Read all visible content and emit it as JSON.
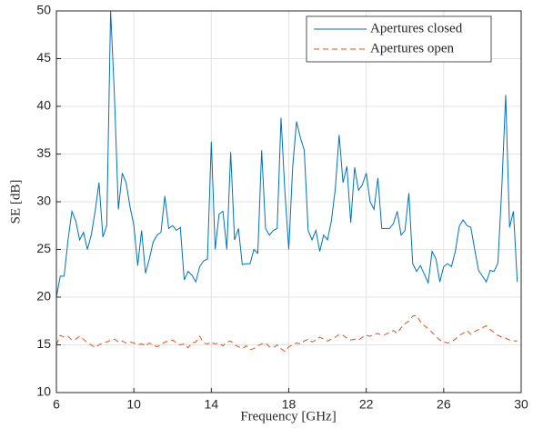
{
  "chart_data": {
    "type": "line",
    "xlabel": "Frequency [GHz]",
    "ylabel": "SE [dB]",
    "x": [
      6.0,
      6.2,
      6.4,
      6.6,
      6.8,
      7.0,
      7.2,
      7.4,
      7.6,
      7.8,
      8.0,
      8.2,
      8.4,
      8.6,
      8.8,
      9.0,
      9.2,
      9.4,
      9.6,
      9.8,
      10.0,
      10.2,
      10.4,
      10.6,
      10.8,
      11.0,
      11.2,
      11.4,
      11.6,
      11.8,
      12.0,
      12.2,
      12.4,
      12.6,
      12.8,
      13.0,
      13.2,
      13.4,
      13.6,
      13.8,
      14.0,
      14.2,
      14.4,
      14.6,
      14.8,
      15.0,
      15.2,
      15.4,
      15.6,
      15.8,
      16.0,
      16.2,
      16.4,
      16.6,
      16.8,
      17.0,
      17.2,
      17.4,
      17.6,
      17.8,
      18.0,
      18.2,
      18.4,
      18.6,
      18.8,
      19.0,
      19.2,
      19.4,
      19.6,
      19.8,
      20.0,
      20.2,
      20.4,
      20.6,
      20.8,
      21.0,
      21.2,
      21.4,
      21.6,
      21.8,
      22.0,
      22.2,
      22.4,
      22.6,
      22.8,
      23.0,
      23.2,
      23.4,
      23.6,
      23.8,
      24.0,
      24.2,
      24.4,
      24.6,
      24.8,
      25.0,
      25.2,
      25.4,
      25.6,
      25.8,
      26.0,
      26.2,
      26.4,
      26.6,
      26.8,
      27.0,
      27.2,
      27.4,
      27.6,
      27.8,
      28.0,
      28.2,
      28.4,
      28.6,
      28.8,
      29.0,
      29.2,
      29.4,
      29.6,
      29.8
    ],
    "series": [
      {
        "name": "Apertures closed",
        "color": "#0072bd",
        "dash": false,
        "values": [
          20,
          22.2,
          22.2,
          26,
          29,
          28,
          26,
          26.8,
          25,
          26.5,
          29,
          32,
          26.3,
          27.5,
          50,
          41,
          29.2,
          33,
          32,
          29.5,
          27.5,
          23.3,
          27,
          22.5,
          24,
          25.8,
          26.5,
          26.8,
          30.6,
          27.2,
          27.5,
          27,
          27.3,
          21.8,
          22.7,
          22.3,
          21.6,
          23.2,
          23.8,
          24,
          36.3,
          25,
          28.7,
          29,
          25,
          35.2,
          26,
          27.2,
          23.4,
          23.5,
          23.5,
          25,
          24.6,
          35.4,
          27.2,
          26.5,
          27,
          27.2,
          38.8,
          31,
          25,
          33.6,
          38.4,
          36.7,
          35.4,
          27,
          26,
          27,
          24.8,
          26.5,
          26,
          28,
          31.3,
          37,
          32,
          33.7,
          27.8,
          33.6,
          31.2,
          31.8,
          33,
          30,
          29.2,
          32.5,
          27.2,
          27.2,
          27.2,
          27.7,
          29,
          26.5,
          27,
          30.9,
          23.5,
          22.7,
          23.3,
          22.4,
          21.5,
          24.8,
          24,
          21.6,
          23.2,
          23.5,
          23.2,
          24.8,
          27.4,
          28.1,
          27.5,
          27.3,
          25,
          22.8,
          22.2,
          21.6,
          22.8,
          22.7,
          23.6,
          31.5,
          41.2,
          27.3,
          29,
          21.6
        ]
      },
      {
        "name": "Apertures open",
        "color": "#d95319",
        "dash": true,
        "values": [
          15,
          16,
          15.8,
          15.9,
          15.5,
          15.6,
          15.9,
          15.6,
          15.2,
          15,
          14.7,
          15,
          15.2,
          15.3,
          15.5,
          15.6,
          15.3,
          15.4,
          15.2,
          15.3,
          15.2,
          15,
          15.1,
          14.9,
          15.2,
          15,
          14.8,
          15,
          15.3,
          15.4,
          15.5,
          15.2,
          15,
          15.1,
          14.7,
          15.2,
          15.3,
          15.9,
          15.2,
          15.1,
          15.3,
          15.1,
          15.2,
          14.9,
          15.3,
          15.4,
          15,
          14.8,
          14.6,
          14.9,
          14.5,
          14.6,
          14.9,
          15.1,
          15.2,
          14.8,
          14.7,
          15,
          14.6,
          14.3,
          14.8,
          15,
          15.2,
          15.1,
          15.4,
          15.6,
          15.3,
          15.5,
          15.8,
          15.6,
          15.4,
          15.6,
          15.8,
          16.1,
          16,
          15.7,
          15.5,
          15.6,
          15.5,
          15.8,
          16,
          15.9,
          16.1,
          16.2,
          16,
          16.1,
          16.3,
          16.5,
          16.2,
          16.8,
          17.2,
          17.5,
          18,
          18.1,
          17.4,
          17,
          16.7,
          16.3,
          15.9,
          15.5,
          15.3,
          15.2,
          15.3,
          15.6,
          16,
          16.2,
          16.5,
          16.1,
          16.4,
          16.6,
          16.8,
          17,
          16.6,
          16.3,
          16,
          15.8,
          15.7,
          15.5,
          15.4,
          15.4
        ]
      }
    ],
    "xlim": [
      6,
      30
    ],
    "xticks": [
      6,
      10,
      14,
      18,
      22,
      26,
      30
    ],
    "ylim": [
      10,
      50
    ],
    "yticks": [
      10,
      15,
      20,
      25,
      30,
      35,
      40,
      45,
      50
    ],
    "grid": true,
    "legend": "upper right"
  }
}
